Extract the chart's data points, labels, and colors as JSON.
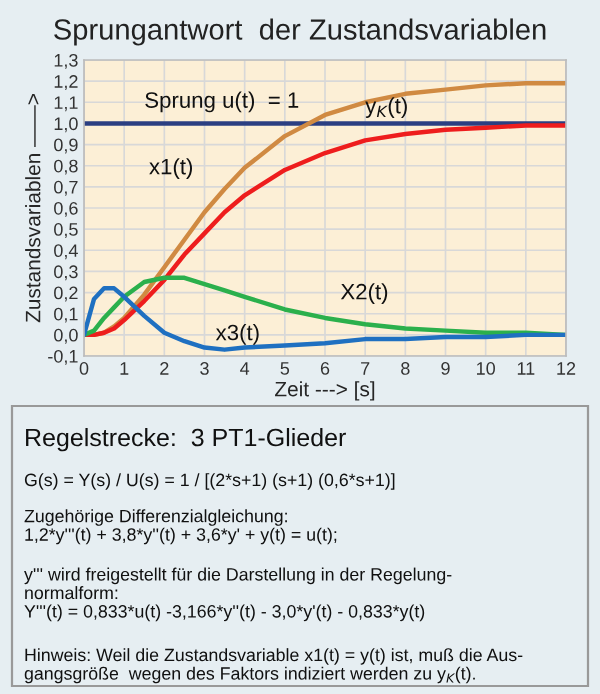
{
  "chart_data": {
    "type": "line",
    "title": "Sprungantwort  der Zustandsvariablen",
    "xlabel": "Zeit ---> [s]",
    "ylabel": "Zustandsvariablen ——>",
    "x": [
      0,
      0.25,
      0.5,
      0.75,
      1,
      1.5,
      2,
      2.5,
      3,
      3.5,
      4,
      5,
      6,
      7,
      8,
      9,
      10,
      11,
      12
    ],
    "series": [
      {
        "color": "#2b3f82",
        "values": [
          1,
          1,
          1,
          1,
          1,
          1,
          1,
          1,
          1,
          1,
          1,
          1,
          1,
          1,
          1,
          1,
          1,
          1,
          1
        ]
      },
      {
        "color": "#d08a42",
        "values": [
          0,
          0,
          0.01,
          0.04,
          0.08,
          0.19,
          0.32,
          0.45,
          0.58,
          0.69,
          0.79,
          0.94,
          1.04,
          1.1,
          1.14,
          1.16,
          1.18,
          1.19,
          1.19
        ]
      },
      {
        "color": "#ee1d1d",
        "values": [
          0,
          0,
          0.01,
          0.03,
          0.07,
          0.16,
          0.26,
          0.38,
          0.48,
          0.58,
          0.66,
          0.78,
          0.86,
          0.92,
          0.95,
          0.97,
          0.98,
          0.99,
          0.99
        ]
      },
      {
        "color": "#2bb04c",
        "values": [
          0,
          0.02,
          0.08,
          0.13,
          0.18,
          0.25,
          0.27,
          0.27,
          0.24,
          0.21,
          0.18,
          0.12,
          0.08,
          0.05,
          0.03,
          0.02,
          0.01,
          0.01,
          0
        ]
      },
      {
        "color": "#1f70c1",
        "values": [
          0,
          0.17,
          0.22,
          0.22,
          0.18,
          0.09,
          0.01,
          -0.03,
          -0.06,
          -0.07,
          -0.06,
          -0.05,
          -0.04,
          -0.02,
          -0.02,
          -0.01,
          -0.01,
          0,
          0
        ]
      }
    ],
    "xlim": [
      0,
      12
    ],
    "xticks": [
      0,
      1,
      2,
      3,
      4,
      5,
      6,
      7,
      8,
      9,
      10,
      11,
      12
    ],
    "ylim": [
      -0.1,
      1.3
    ],
    "yticks": [
      {
        "value": -0.1,
        "label": "-0,1"
      },
      {
        "value": 0,
        "label": "0,0"
      },
      {
        "value": 0.1,
        "label": "0,1"
      },
      {
        "value": 0.2,
        "label": "0,2"
      },
      {
        "value": 0.3,
        "label": "0,3"
      },
      {
        "value": 0.4,
        "label": "0,4"
      },
      {
        "value": 0.5,
        "label": "0,5"
      },
      {
        "value": 0.6,
        "label": "0,6"
      },
      {
        "value": 0.7,
        "label": "0,7"
      },
      {
        "value": 0.8,
        "label": "0,8"
      },
      {
        "value": 0.9,
        "label": "0,9"
      },
      {
        "value": 1.0,
        "label": "1,0"
      },
      {
        "value": 1.1,
        "label": "1,1"
      },
      {
        "value": 1.2,
        "label": "1,2"
      },
      {
        "value": 1.3,
        "label": "1,3"
      }
    ],
    "grid": true,
    "legend": false,
    "marker": "none",
    "line_style": "solid",
    "annotations": [
      {
        "text": "Sprung u(t)  = 1",
        "x": 1.5,
        "y": 1.0
      },
      {
        "text": "x1(t)",
        "x": 3,
        "y": 0.58
      },
      {
        "text": "y$_{K}$(t)",
        "x": 7,
        "y": 0.92
      },
      {
        "text": "X2(t)",
        "x": 5,
        "y": 0.12
      },
      {
        "text": "x3(t)",
        "x": 3,
        "y": -0.06
      },
      "Regelstrecke:  3 PT1-Glieder",
      "G(s) = Y(s) / U(s) = 1 / [(2*s+1) (s+1) (0,6*s+1)]",
      "Zugehörige Differenzialgleichung:\n1,2*y'''(t) + 3,8*y''(t) + 3,6*y' + y(t) = u(t);",
      "y''' wird freigestellt für die Darstellung in der Regelung-\nnormalform:\nY'''(t) = 0,833*u(t) -3,166*y''(t) - 3,0*y'(t) - 0,833*y(t)",
      "Hinweis: Weil die Zustandsvariable x1(t) = y(t) ist, muß die Aus-\ngangsgröße  wegen des Faktors indiziert werden zu y$_{K}$(t)."
    ]
  }
}
